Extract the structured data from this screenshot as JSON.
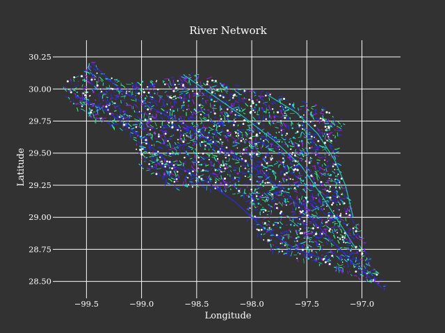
{
  "colors": {
    "background": "#323232",
    "text": "#ffffff",
    "grid": "#ffffff",
    "river_blue": "#2a2aff",
    "river_purple": "#a020f0",
    "river_cyan": "#20e0d0",
    "river_green": "#30f080",
    "node_white": "#ffffff"
  },
  "chart_data": {
    "type": "scatter",
    "title": "River Network",
    "xlabel": "Longitude",
    "ylabel": "Latitude",
    "xlim": [
      -99.78,
      -96.65
    ],
    "ylim": [
      28.39,
      30.38
    ],
    "xticks": [
      -99.5,
      -99.0,
      -98.5,
      -98.0,
      -97.5,
      -97.0
    ],
    "xtick_labels": [
      "−99.5",
      "−99.0",
      "−98.5",
      "−98.0",
      "−97.5",
      "−97.0"
    ],
    "yticks": [
      28.5,
      28.75,
      29.0,
      29.25,
      29.5,
      29.75,
      30.0,
      30.25
    ],
    "ytick_labels": [
      "28.50",
      "28.75",
      "29.00",
      "29.25",
      "29.50",
      "29.75",
      "30.00",
      "30.25"
    ],
    "grid": true,
    "legend": false,
    "network_outline": [
      [
        -99.65,
        30.08
      ],
      [
        -99.55,
        30.12
      ],
      [
        -99.45,
        30.24
      ],
      [
        -99.35,
        30.14
      ],
      [
        -99.2,
        30.05
      ],
      [
        -99.0,
        30.06
      ],
      [
        -98.8,
        30.08
      ],
      [
        -98.6,
        30.12
      ],
      [
        -98.45,
        30.12
      ],
      [
        -98.3,
        30.06
      ],
      [
        -98.1,
        30.02
      ],
      [
        -97.95,
        30.0
      ],
      [
        -97.8,
        29.96
      ],
      [
        -97.65,
        29.92
      ],
      [
        -97.5,
        29.9
      ],
      [
        -97.35,
        29.86
      ],
      [
        -97.15,
        29.75
      ],
      [
        -97.25,
        29.55
      ],
      [
        -97.2,
        29.35
      ],
      [
        -97.1,
        29.05
      ],
      [
        -97.0,
        28.85
      ],
      [
        -96.95,
        28.72
      ],
      [
        -96.85,
        28.55
      ],
      [
        -96.78,
        28.45
      ],
      [
        -96.95,
        28.5
      ],
      [
        -97.1,
        28.55
      ],
      [
        -97.3,
        28.62
      ],
      [
        -97.5,
        28.66
      ],
      [
        -97.7,
        28.7
      ],
      [
        -97.85,
        28.76
      ],
      [
        -97.95,
        28.86
      ],
      [
        -98.05,
        29.0
      ],
      [
        -98.1,
        29.15
      ],
      [
        -98.3,
        29.22
      ],
      [
        -98.5,
        29.23
      ],
      [
        -98.7,
        29.22
      ],
      [
        -98.85,
        29.3
      ],
      [
        -99.0,
        29.38
      ],
      [
        -99.05,
        29.45
      ],
      [
        -99.05,
        29.55
      ],
      [
        -99.1,
        29.65
      ],
      [
        -99.3,
        29.72
      ],
      [
        -99.5,
        29.78
      ],
      [
        -99.65,
        29.9
      ],
      [
        -99.75,
        30.0
      ]
    ],
    "main_channels": [
      {
        "name": "",
        "points": [
          [
            -99.45,
            30.2
          ],
          [
            -99.2,
            30.0
          ],
          [
            -98.9,
            29.85
          ],
          [
            -98.6,
            29.72
          ],
          [
            -98.3,
            29.55
          ],
          [
            -98.0,
            29.4
          ],
          [
            -97.7,
            29.2
          ],
          [
            -97.45,
            28.98
          ],
          [
            -97.25,
            28.8
          ],
          [
            -97.05,
            28.62
          ],
          [
            -96.82,
            28.45
          ]
        ]
      },
      {
        "name": "",
        "points": [
          [
            -98.6,
            30.1
          ],
          [
            -98.35,
            29.95
          ],
          [
            -98.1,
            29.8
          ],
          [
            -97.8,
            29.6
          ],
          [
            -97.55,
            29.4
          ],
          [
            -97.35,
            29.15
          ],
          [
            -97.2,
            28.95
          ],
          [
            -97.05,
            28.75
          ]
        ]
      },
      {
        "name": "",
        "points": [
          [
            -99.6,
            29.95
          ],
          [
            -99.3,
            29.82
          ],
          [
            -99.0,
            29.62
          ],
          [
            -98.75,
            29.42
          ],
          [
            -98.45,
            29.3
          ],
          [
            -98.15,
            29.12
          ],
          [
            -97.9,
            28.92
          ],
          [
            -97.6,
            28.75
          ],
          [
            -97.3,
            28.66
          ]
        ]
      },
      {
        "name": "",
        "points": [
          [
            -97.85,
            29.95
          ],
          [
            -97.6,
            29.82
          ],
          [
            -97.4,
            29.65
          ],
          [
            -97.25,
            29.45
          ],
          [
            -97.15,
            29.25
          ],
          [
            -97.08,
            29.0
          ]
        ]
      }
    ]
  }
}
